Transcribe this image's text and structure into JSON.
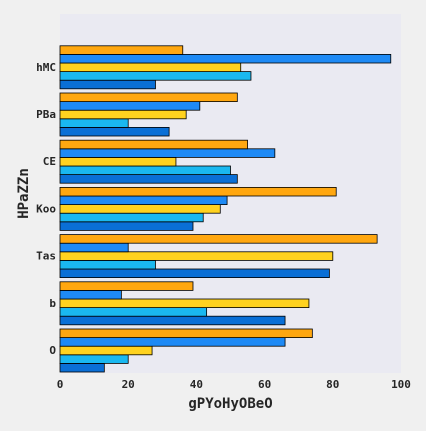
{
  "chart_data": {
    "type": "bar",
    "orientation": "horizontal",
    "title": "",
    "xlabel": "gPYoHyOBeO",
    "ylabel": "HPaZZn",
    "xlim": [
      0,
      100
    ],
    "xticks": [
      0,
      20,
      40,
      60,
      80,
      100
    ],
    "grid": false,
    "legend": "none",
    "categories": [
      "O",
      "b",
      "Tas",
      "Koo",
      "CE",
      "PBa",
      "hMC"
    ],
    "series": [
      {
        "color": "#0a6fd6",
        "values": [
          13,
          66,
          79,
          39,
          52,
          32,
          28
        ]
      },
      {
        "color": "#1ab8f0",
        "values": [
          20,
          43,
          28,
          42,
          50,
          20,
          56
        ]
      },
      {
        "color": "#ffd21f",
        "values": [
          27,
          73,
          80,
          47,
          34,
          37,
          53
        ]
      },
      {
        "color": "#1e8af5",
        "values": [
          66,
          18,
          20,
          49,
          63,
          41,
          97
        ]
      },
      {
        "color": "#ffa710",
        "values": [
          74,
          39,
          93,
          81,
          55,
          52,
          36
        ]
      }
    ],
    "colors": {
      "plot_background": "#eaeaf2",
      "page_background": "#f0f0f0",
      "bar_edge": "#000000"
    }
  }
}
